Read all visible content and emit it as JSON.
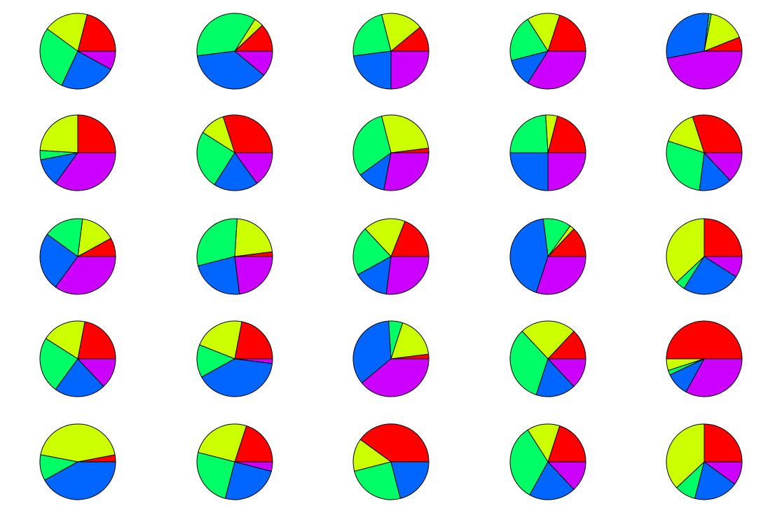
{
  "colors": {
    "background": "#ffffff",
    "outline": "#000000",
    "red": "#ff0000",
    "yellow": "#ccff00",
    "green": "#00ff66",
    "blue": "#0066ff",
    "magenta": "#cc00ff"
  },
  "chart_data": {
    "type": "pie",
    "layout": "grid",
    "rows": 5,
    "cols": 5,
    "title": "",
    "start_angle_deg": 0,
    "direction": "counterclockwise",
    "categories": [
      "red",
      "yellow",
      "green",
      "blue",
      "magenta"
    ],
    "slice_colors": [
      "#ff0000",
      "#ccff00",
      "#00ff66",
      "#0066ff",
      "#cc00ff"
    ],
    "pies": [
      {
        "values": [
          21,
          19,
          28,
          24,
          8
        ]
      },
      {
        "values": [
          12,
          4,
          36,
          37,
          11
        ]
      },
      {
        "values": [
          11,
          18,
          23,
          23,
          25
        ]
      },
      {
        "values": [
          20,
          14,
          20,
          12,
          34
        ]
      },
      {
        "values": [
          6,
          16,
          1,
          30,
          47
        ]
      },
      {
        "values": [
          25,
          24,
          4,
          12,
          35
        ]
      },
      {
        "values": [
          30,
          11,
          25,
          19,
          15
        ]
      },
      {
        "values": [
          2,
          27,
          31,
          12,
          28
        ]
      },
      {
        "values": [
          21,
          5,
          24,
          25,
          25
        ]
      },
      {
        "values": [
          30,
          15,
          28,
          14,
          13
        ]
      },
      {
        "values": [
          8,
          15,
          17,
          25,
          35
        ]
      },
      {
        "values": [
          2,
          22,
          30,
          23,
          23
        ]
      },
      {
        "values": [
          19,
          18,
          21,
          15,
          27
        ]
      },
      {
        "values": [
          13,
          2,
          12,
          43,
          30
        ]
      },
      {
        "values": [
          25,
          37,
          4,
          25,
          9
        ]
      },
      {
        "values": [
          22,
          19,
          24,
          22,
          13
        ]
      },
      {
        "values": [
          22,
          22,
          14,
          40,
          2
        ]
      },
      {
        "values": [
          2,
          18,
          6,
          35,
          39
        ]
      },
      {
        "values": [
          13,
          24,
          33,
          17,
          13
        ]
      },
      {
        "values": [
          50,
          5,
          2,
          10,
          33
        ]
      },
      {
        "values": [
          3,
          44,
          11,
          42,
          0
        ]
      },
      {
        "values": [
          20,
          26,
          25,
          25,
          4
        ]
      },
      {
        "values": [
          40,
          14,
          25,
          21,
          0
        ]
      },
      {
        "values": [
          20,
          14,
          33,
          20,
          13
        ]
      },
      {
        "values": [
          25,
          37,
          9,
          19,
          10
        ]
      }
    ]
  }
}
